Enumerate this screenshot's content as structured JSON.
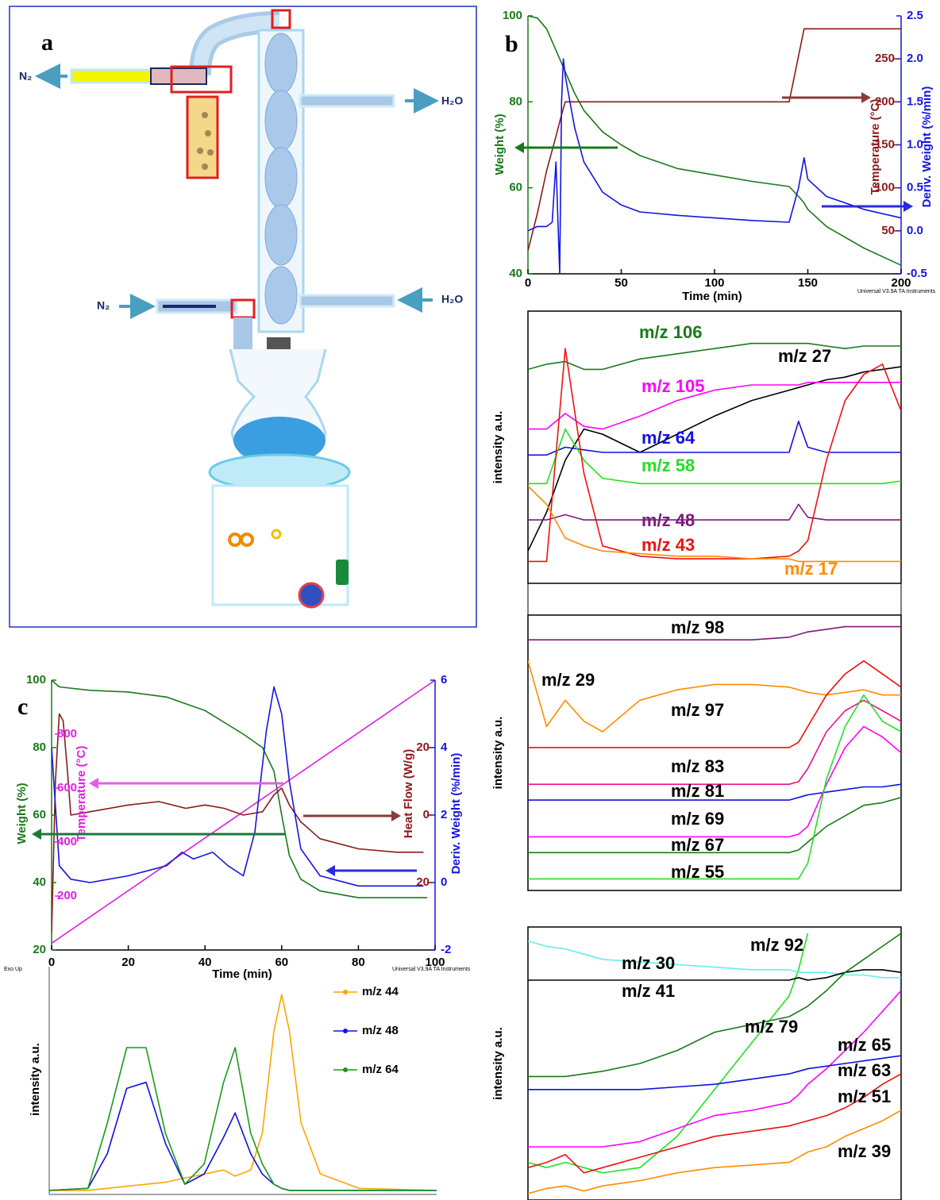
{
  "panel_a": {
    "label": "a",
    "labels": [
      "N₂",
      "H₂O",
      "N₂",
      "H₂O"
    ]
  },
  "chart_data": [
    {
      "type": "line",
      "panel_label": "b",
      "xlabel": "Time (min)",
      "ylabel": "Weight (%)",
      "y2label": "Deriv. Weight (%/min)",
      "y3label": "Temperature (°C)",
      "footer": "Universal V3.9A TA Instruments",
      "xlim": [
        0,
        200
      ],
      "xticks": [
        0,
        50,
        100,
        150,
        200
      ],
      "ylim": [
        40,
        100
      ],
      "yticks": [
        40,
        60,
        80,
        100
      ],
      "y2lim": [
        -0.5,
        2.5
      ],
      "y2ticks": [
        -0.5,
        {
          "value": 0,
          "label": "0.0"
        },
        0.5,
        {
          "value": 1,
          "label": "1.0"
        },
        1.5,
        {
          "value": 2,
          "label": "2.0"
        },
        2.5
      ],
      "y3lim": [
        0,
        300
      ],
      "y3ticks": [
        50,
        100,
        150,
        200,
        250
      ],
      "series": [
        {
          "color": "#1a7a1a",
          "axis": "y",
          "x": [
            0,
            5,
            10,
            15,
            17,
            20,
            25,
            30,
            40,
            50,
            60,
            80,
            100,
            120,
            140,
            145,
            148,
            150,
            160,
            180,
            200
          ],
          "values": [
            100,
            99.5,
            97,
            92,
            90,
            87,
            82,
            78,
            73,
            70,
            67.5,
            64.5,
            63,
            61.5,
            60.3,
            58,
            56.5,
            55,
            51,
            46,
            42
          ]
        },
        {
          "color": "#8b1a1a",
          "axis": "y3",
          "x": [
            0,
            5,
            10,
            15,
            18,
            20,
            140,
            148,
            200
          ],
          "values": [
            27,
            70,
            120,
            160,
            185,
            200,
            200,
            285,
            285
          ]
        },
        {
          "color": "#1515e0",
          "axis": "y2",
          "x": [
            0,
            5,
            10,
            13,
            15,
            17,
            18,
            19,
            20,
            25,
            30,
            40,
            50,
            60,
            80,
            100,
            120,
            140,
            145,
            148,
            150,
            160,
            180,
            200
          ],
          "values": [
            0,
            0.05,
            0.05,
            0.1,
            0.8,
            -0.5,
            1.5,
            2.0,
            1.8,
            1.2,
            0.8,
            0.45,
            0.3,
            0.22,
            0.18,
            0.15,
            0.12,
            0.1,
            0.5,
            0.85,
            0.6,
            0.4,
            0.25,
            0.15
          ]
        }
      ]
    },
    {
      "type": "line",
      "ylabel": "intensity a.u.",
      "labels_colored": true,
      "xlim": [
        0,
        200
      ],
      "ylim": [
        0,
        100
      ],
      "x": [
        0,
        10,
        20,
        30,
        40,
        60,
        80,
        100,
        120,
        140,
        145,
        150,
        160,
        170,
        180,
        190,
        200
      ],
      "series": [
        {
          "name": "m/z 106",
          "color": "#1a7a1a",
          "values": [
            80,
            82,
            83,
            80,
            80,
            84,
            86,
            88,
            90,
            90,
            90,
            90,
            89,
            88,
            89,
            89,
            89
          ]
        },
        {
          "name": "m/z 27",
          "color": "#000000",
          "values": [
            10,
            25,
            45,
            57,
            55,
            48,
            55,
            62,
            68,
            72,
            73,
            74,
            76,
            77,
            79,
            80,
            81
          ]
        },
        {
          "name": "m/z 105",
          "color": "#ff00ff",
          "values": [
            57,
            57,
            63,
            58,
            57,
            62,
            68,
            72,
            74,
            74,
            74,
            75,
            75,
            75,
            75,
            75,
            75
          ]
        },
        {
          "name": "m/z 64",
          "color": "#1010e0",
          "values": [
            47,
            47,
            50,
            49,
            48,
            48,
            48,
            48,
            48,
            48,
            60,
            50,
            48,
            48,
            48,
            48,
            48
          ]
        },
        {
          "name": "m/z 58",
          "color": "#22e022",
          "values": [
            36,
            36,
            57,
            45,
            38,
            36,
            36,
            36,
            36,
            36,
            36,
            36,
            36,
            36,
            36,
            36,
            37
          ]
        },
        {
          "name": "m/z 48",
          "color": "#7a1a7a",
          "values": [
            22,
            22,
            24,
            22,
            22,
            22,
            22,
            22,
            22,
            22,
            28,
            23,
            22,
            22,
            22,
            22,
            22
          ]
        },
        {
          "name": "m/z 43",
          "color": "#ee1111",
          "values": [
            6,
            6,
            88,
            40,
            12,
            8,
            7,
            7,
            7,
            8,
            10,
            14,
            45,
            68,
            78,
            82,
            64
          ]
        },
        {
          "name": "m/z 17",
          "color": "#ff8c00",
          "values": [
            35,
            28,
            15,
            12,
            10,
            9,
            8,
            8,
            7,
            7,
            6,
            6,
            6,
            6,
            6,
            6,
            6
          ]
        }
      ]
    },
    {
      "type": "line",
      "ylabel": "intensity a.u.",
      "labels_colored": false,
      "xlim": [
        0,
        200
      ],
      "ylim": [
        0,
        100
      ],
      "x": [
        0,
        10,
        20,
        30,
        40,
        60,
        80,
        100,
        120,
        140,
        145,
        150,
        160,
        170,
        180,
        190,
        200
      ],
      "series": [
        {
          "name": "m/z 98",
          "color": "#7a1a7a",
          "values": [
            93,
            93,
            93,
            93,
            93,
            93,
            93,
            93,
            93,
            94,
            95,
            96,
            97,
            98,
            98,
            98,
            98
          ]
        },
        {
          "name": "m/z 29",
          "color": "#ff8c00",
          "values": [
            85,
            60,
            70,
            62,
            58,
            70,
            74,
            76,
            76,
            75,
            74,
            73,
            72,
            73,
            74,
            72,
            72
          ]
        },
        {
          "name": "m/z 97",
          "color": "#ee1111",
          "values": [
            52,
            52,
            52,
            52,
            52,
            52,
            52,
            52,
            52,
            52,
            54,
            60,
            72,
            80,
            85,
            80,
            75
          ]
        },
        {
          "name": "m/z 83",
          "color": "#ee1188",
          "values": [
            38,
            38,
            38,
            38,
            38,
            38,
            38,
            38,
            38,
            38,
            39,
            44,
            58,
            66,
            70,
            66,
            62
          ]
        },
        {
          "name": "m/z 81",
          "color": "#1010e0",
          "values": [
            32,
            32,
            32,
            32,
            32,
            32,
            32,
            32,
            32,
            32,
            33,
            34,
            35,
            36,
            37,
            37,
            38
          ]
        },
        {
          "name": "m/z 69",
          "color": "#ff00ff",
          "values": [
            18,
            18,
            18,
            18,
            18,
            18,
            18,
            18,
            18,
            18,
            19,
            22,
            38,
            52,
            60,
            56,
            50
          ]
        },
        {
          "name": "m/z 67",
          "color": "#1a7a1a",
          "values": [
            12,
            12,
            12,
            12,
            12,
            12,
            12,
            12,
            12,
            12,
            13,
            16,
            22,
            26,
            30,
            31,
            33
          ]
        },
        {
          "name": "m/z 55",
          "color": "#22e022",
          "values": [
            2,
            2,
            2,
            2,
            2,
            2,
            2,
            2,
            2,
            2,
            2,
            8,
            40,
            60,
            72,
            62,
            58
          ]
        }
      ]
    },
    {
      "type": "line",
      "ylabel": "intensity a.u.",
      "labels_colored": false,
      "xlim": [
        0,
        200
      ],
      "ylim": [
        0,
        100
      ],
      "x": [
        0,
        10,
        20,
        30,
        40,
        60,
        80,
        100,
        120,
        140,
        145,
        150,
        160,
        170,
        180,
        190,
        200
      ],
      "series": [
        {
          "name": "m/z 92",
          "color": "#22e022",
          "values": [
            12,
            10,
            12,
            10,
            8,
            10,
            22,
            40,
            58,
            76,
            86,
            100,
            null,
            null,
            null,
            null,
            null
          ]
        },
        {
          "name": "m/z 30",
          "color": "#66eeee",
          "values": [
            97,
            95,
            94,
            92,
            90,
            89,
            88,
            87,
            86,
            86,
            85,
            85,
            85,
            84,
            84,
            83,
            83
          ]
        },
        {
          "name": "m/z 41",
          "color": "#000000",
          "values": [
            82,
            82,
            82,
            82,
            82,
            82,
            82,
            82,
            82,
            82,
            83,
            82,
            83,
            85,
            86,
            86,
            85
          ]
        },
        {
          "name": "m/z 79",
          "color": "#1a7a1a",
          "values": [
            45,
            45,
            45,
            46,
            47,
            50,
            55,
            62,
            65,
            68,
            70,
            72,
            78,
            85,
            90,
            95,
            100
          ]
        },
        {
          "name": "m/z 65",
          "color": "#ff00ff",
          "values": [
            18,
            18,
            18,
            18,
            18,
            20,
            25,
            30,
            32,
            35,
            38,
            42,
            48,
            55,
            62,
            70,
            78
          ]
        },
        {
          "name": "m/z 63",
          "color": "#1010e0",
          "values": [
            40,
            40,
            40,
            40,
            40,
            40,
            41,
            42,
            44,
            46,
            47,
            48,
            49,
            50,
            51,
            52,
            53
          ]
        },
        {
          "name": "m/z 51",
          "color": "#ee1111",
          "values": [
            10,
            12,
            15,
            8,
            10,
            14,
            18,
            22,
            24,
            26,
            27,
            28,
            30,
            33,
            37,
            42,
            46
          ]
        },
        {
          "name": "m/z 39",
          "color": "#ff8c00",
          "values": [
            0,
            2,
            3,
            1,
            3,
            5,
            8,
            10,
            11,
            12,
            14,
            16,
            18,
            22,
            25,
            28,
            32
          ]
        }
      ]
    },
    {
      "type": "line",
      "panel_label": "c",
      "xlabel": "Time (min)",
      "ylabel": "Weight (%)",
      "y2label": "Deriv. Weight (%/min)",
      "y3label": "Heat Flow (W/g)",
      "y4label": "Temperature (°C)",
      "note": "Exo Up",
      "footer": "Universal V3.9A TA Instruments",
      "xlim": [
        0,
        100
      ],
      "xticks": [
        0,
        20,
        40,
        60,
        80,
        100
      ],
      "ylim": [
        20,
        100
      ],
      "yticks": [
        20,
        40,
        60,
        80,
        100
      ],
      "y2lim": [
        -2,
        6
      ],
      "y2ticks": [
        -2,
        0,
        2,
        4,
        6
      ],
      "y3lim": [
        -40,
        40
      ],
      "y3ticks": [
        20,
        0,
        {
          "value": -20,
          "label": "20"
        }
      ],
      "y4lim": [
        0,
        1000
      ],
      "y4ticks": [
        200,
        400,
        600,
        800
      ],
      "series": [
        {
          "color": "#1a7a1a",
          "axis": "y",
          "x": [
            0,
            2,
            10,
            20,
            30,
            40,
            50,
            55,
            58,
            60,
            62,
            65,
            70,
            80,
            98
          ],
          "values": [
            100,
            98,
            97,
            96.5,
            95,
            91,
            84,
            80,
            73,
            60,
            48,
            41,
            37.5,
            35.5,
            35.5
          ]
        },
        {
          "color": "#e020e0",
          "axis": "y4",
          "x": [
            0,
            100
          ],
          "values": [
            25,
            1000
          ]
        },
        {
          "color": "#8b1a1a",
          "axis": "y3",
          "x": [
            0,
            1,
            2,
            3,
            4,
            5,
            10,
            20,
            28,
            35,
            40,
            45,
            50,
            55,
            58,
            60,
            62,
            65,
            70,
            80,
            90,
            97
          ],
          "values": [
            -35,
            10,
            30,
            28,
            15,
            0,
            1,
            3,
            4,
            2,
            3,
            2,
            0,
            1,
            6,
            8,
            3,
            -2,
            -7,
            -10,
            -11,
            -11
          ]
        },
        {
          "color": "#1515e0",
          "axis": "y2",
          "x": [
            0,
            2,
            5,
            10,
            20,
            30,
            34,
            37,
            42,
            46,
            50,
            53,
            56,
            58,
            60,
            62,
            65,
            70,
            80,
            97
          ],
          "values": [
            4,
            0.5,
            0.1,
            0,
            0.2,
            0.5,
            0.9,
            0.7,
            0.9,
            0.5,
            0.2,
            1.5,
            4.5,
            5.8,
            5,
            3,
            1,
            0.2,
            -0.1,
            -0.1
          ]
        }
      ]
    },
    {
      "type": "line",
      "ylabel": "intensity a.u.",
      "xlim": [
        0,
        100
      ],
      "ylim": [
        0,
        100
      ],
      "legend": "upper right",
      "x": [
        0,
        10,
        15,
        20,
        25,
        30,
        35,
        40,
        45,
        48,
        52,
        55,
        58,
        60,
        62,
        65,
        70,
        80,
        100
      ],
      "series": [
        {
          "name": "m/z 44",
          "color": "#ffa500",
          "values": [
            2,
            2,
            3,
            4,
            5,
            6,
            8,
            10,
            12,
            9,
            12,
            30,
            80,
            98,
            80,
            35,
            10,
            3,
            2
          ]
        },
        {
          "name": "m/z 48",
          "color": "#1010e0",
          "values": [
            2,
            3,
            20,
            52,
            55,
            25,
            5,
            10,
            28,
            40,
            20,
            10,
            5,
            3,
            2,
            2,
            2,
            2,
            2
          ]
        },
        {
          "name": "m/z 64",
          "color": "#1a9a1a",
          "values": [
            2,
            3,
            35,
            72,
            72,
            30,
            5,
            15,
            55,
            72,
            30,
            15,
            5,
            3,
            2,
            2,
            2,
            2,
            2
          ]
        }
      ]
    }
  ]
}
